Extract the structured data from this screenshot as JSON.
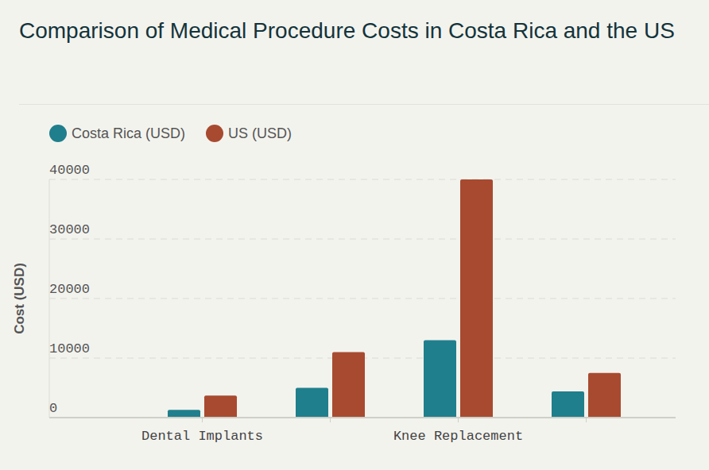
{
  "chart_data": {
    "type": "bar",
    "title": "Comparison of Medical Procedure Costs in Costa Rica and the US",
    "y_label": "Cost (USD)",
    "categories": [
      "Dental Implants",
      null,
      "Knee Replacement",
      null
    ],
    "series": [
      {
        "name": "Costa Rica (USD)",
        "color": "#1f7f8c",
        "values": [
          1300,
          5000,
          13000,
          4400
        ]
      },
      {
        "name": "US (USD)",
        "color": "#a84a2f",
        "values": [
          3700,
          11000,
          40000,
          7500
        ]
      }
    ],
    "ylim": [
      0,
      40000
    ],
    "yticks": [
      0,
      10000,
      20000,
      30000,
      40000
    ],
    "grid": true,
    "legend": "top-left"
  }
}
